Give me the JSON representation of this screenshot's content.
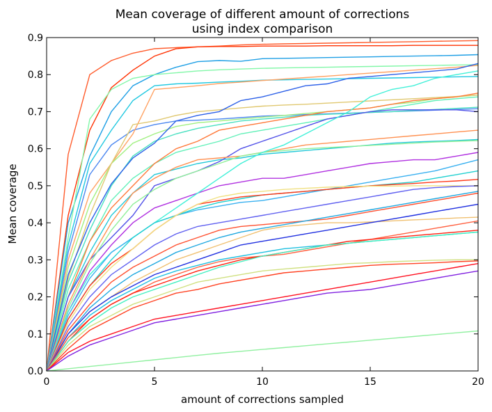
{
  "chart_data": {
    "type": "line",
    "title_lines": [
      "Mean coverage of different amount of corrections",
      "using index comparison"
    ],
    "xlabel": "amount of corrections sampled",
    "ylabel": "Mean coverage",
    "xlim": [
      0,
      20
    ],
    "ylim": [
      0,
      0.9
    ],
    "x_ticks": [
      0,
      5,
      10,
      15,
      20
    ],
    "y_ticks": [
      0.0,
      0.1,
      0.2,
      0.3,
      0.4,
      0.5,
      0.6,
      0.7,
      0.8,
      0.9
    ],
    "x_tick_labels": [
      "0",
      "5",
      "10",
      "15",
      "20"
    ],
    "y_tick_labels": [
      "0.0",
      "0.1",
      "0.2",
      "0.3",
      "0.4",
      "0.5",
      "0.6",
      "0.7",
      "0.8",
      "0.9"
    ],
    "grid": false,
    "legend": "none",
    "x": [
      0,
      1,
      2,
      3,
      4,
      5,
      6,
      7,
      8,
      9,
      10,
      11,
      12,
      13,
      14,
      15,
      16,
      17,
      18,
      19,
      20
    ],
    "series": [
      {
        "color": "#ff5a2a",
        "values": [
          0,
          0.585,
          0.8,
          0.838,
          0.858,
          0.87,
          0.873,
          0.875,
          0.877,
          0.88,
          0.882,
          0.883,
          0.884,
          0.885,
          0.886,
          0.887,
          0.888,
          0.889,
          0.89,
          0.891,
          0.892
        ]
      },
      {
        "color": "#ff3000",
        "values": [
          0,
          0.42,
          0.65,
          0.765,
          0.812,
          0.85,
          0.87,
          0.875,
          0.876,
          0.876,
          0.877,
          0.877,
          0.877,
          0.878,
          0.878,
          0.878,
          0.878,
          0.879,
          0.879,
          0.879,
          0.879
        ]
      },
      {
        "color": "#1e9fe5",
        "values": [
          0,
          0.4,
          0.58,
          0.7,
          0.77,
          0.8,
          0.82,
          0.835,
          0.838,
          0.836,
          0.843,
          0.844,
          0.845,
          0.846,
          0.847,
          0.848,
          0.849,
          0.85,
          0.851,
          0.852,
          0.854
        ]
      },
      {
        "color": "#82f7a8",
        "values": [
          0,
          0.36,
          0.68,
          0.76,
          0.79,
          0.8,
          0.805,
          0.81,
          0.813,
          0.815,
          0.817,
          0.818,
          0.819,
          0.82,
          0.821,
          0.822,
          0.823,
          0.824,
          0.825,
          0.826,
          0.827
        ]
      },
      {
        "color": "#1ec8e0",
        "values": [
          0,
          0.34,
          0.56,
          0.65,
          0.73,
          0.77,
          0.775,
          0.777,
          0.78,
          0.782,
          0.785,
          0.786,
          0.787,
          0.788,
          0.789,
          0.79,
          0.791,
          0.792,
          0.793,
          0.794,
          0.795
        ]
      },
      {
        "color": "#4a86f0",
        "values": [
          0,
          0.32,
          0.53,
          0.61,
          0.65,
          0.665,
          0.675,
          0.677,
          0.68,
          0.684,
          0.688,
          0.69,
          0.692,
          0.694,
          0.696,
          0.698,
          0.7,
          0.702,
          0.704,
          0.706,
          0.708
        ]
      },
      {
        "color": "#ffa060",
        "values": [
          0,
          0.3,
          0.48,
          0.56,
          0.64,
          0.76,
          0.765,
          0.77,
          0.776,
          0.78,
          0.784,
          0.788,
          0.792,
          0.796,
          0.8,
          0.804,
          0.808,
          0.812,
          0.816,
          0.82,
          0.825
        ]
      },
      {
        "color": "#a0f080",
        "values": [
          0,
          0.28,
          0.45,
          0.56,
          0.615,
          0.64,
          0.66,
          0.67,
          0.675,
          0.68,
          0.685,
          0.69,
          0.695,
          0.7,
          0.705,
          0.71,
          0.72,
          0.725,
          0.735,
          0.74,
          0.745
        ]
      },
      {
        "color": "#e0c870",
        "values": [
          0,
          0.25,
          0.42,
          0.56,
          0.665,
          0.675,
          0.69,
          0.7,
          0.705,
          0.71,
          0.715,
          0.718,
          0.72,
          0.723,
          0.726,
          0.729,
          0.732,
          0.735,
          0.738,
          0.741,
          0.745
        ]
      },
      {
        "color": "#48e0c0",
        "values": [
          0,
          0.24,
          0.38,
          0.5,
          0.58,
          0.62,
          0.64,
          0.655,
          0.665,
          0.675,
          0.68,
          0.685,
          0.69,
          0.693,
          0.695,
          0.698,
          0.7,
          0.703,
          0.706,
          0.709,
          0.712
        ]
      },
      {
        "color": "#2c60e8",
        "values": [
          0,
          0.26,
          0.4,
          0.505,
          0.575,
          0.615,
          0.675,
          0.69,
          0.7,
          0.73,
          0.74,
          0.755,
          0.77,
          0.775,
          0.79,
          0.795,
          0.8,
          0.805,
          0.81,
          0.815,
          0.83
        ]
      },
      {
        "color": "#60f0b8",
        "values": [
          0,
          0.22,
          0.35,
          0.46,
          0.52,
          0.56,
          0.59,
          0.605,
          0.62,
          0.64,
          0.65,
          0.66,
          0.67,
          0.68,
          0.69,
          0.7,
          0.71,
          0.72,
          0.73,
          0.735,
          0.74
        ]
      },
      {
        "color": "#ff7838",
        "values": [
          0,
          0.2,
          0.35,
          0.44,
          0.5,
          0.56,
          0.6,
          0.62,
          0.65,
          0.66,
          0.67,
          0.68,
          0.69,
          0.7,
          0.705,
          0.71,
          0.72,
          0.73,
          0.735,
          0.74,
          0.75
        ]
      },
      {
        "color": "#20c8d8",
        "values": [
          0,
          0.2,
          0.32,
          0.42,
          0.48,
          0.53,
          0.545,
          0.56,
          0.57,
          0.575,
          0.585,
          0.59,
          0.595,
          0.6,
          0.605,
          0.61,
          0.615,
          0.618,
          0.62,
          0.622,
          0.625
        ]
      },
      {
        "color": "#5050e8",
        "values": [
          0,
          0.2,
          0.3,
          0.36,
          0.42,
          0.5,
          0.52,
          0.54,
          0.565,
          0.6,
          0.62,
          0.64,
          0.66,
          0.68,
          0.69,
          0.7,
          0.705,
          0.705,
          0.705,
          0.705,
          0.7
        ]
      },
      {
        "color": "#ff9050",
        "values": [
          0,
          0.18,
          0.3,
          0.4,
          0.48,
          0.52,
          0.55,
          0.57,
          0.575,
          0.58,
          0.59,
          0.6,
          0.61,
          0.615,
          0.62,
          0.625,
          0.63,
          0.635,
          0.64,
          0.645,
          0.65
        ]
      },
      {
        "color": "#90f098",
        "values": [
          0,
          0.17,
          0.29,
          0.38,
          0.45,
          0.49,
          0.52,
          0.54,
          0.56,
          0.58,
          0.59,
          0.595,
          0.6,
          0.603,
          0.606,
          0.609,
          0.612,
          0.615,
          0.618,
          0.62,
          0.622
        ]
      },
      {
        "color": "#b030e0",
        "values": [
          0,
          0.16,
          0.27,
          0.34,
          0.4,
          0.44,
          0.46,
          0.48,
          0.5,
          0.51,
          0.52,
          0.52,
          0.53,
          0.54,
          0.55,
          0.56,
          0.565,
          0.57,
          0.57,
          0.58,
          0.59
        ]
      },
      {
        "color": "#40f0d8",
        "values": [
          0,
          0.16,
          0.26,
          0.32,
          0.36,
          0.4,
          0.44,
          0.48,
          0.52,
          0.56,
          0.59,
          0.61,
          0.64,
          0.67,
          0.7,
          0.74,
          0.76,
          0.77,
          0.79,
          0.8,
          0.81
        ]
      },
      {
        "color": "#38b0f0",
        "values": [
          0,
          0.15,
          0.25,
          0.32,
          0.36,
          0.4,
          0.42,
          0.435,
          0.445,
          0.455,
          0.46,
          0.47,
          0.48,
          0.49,
          0.5,
          0.51,
          0.52,
          0.53,
          0.54,
          0.555,
          0.57
        ]
      },
      {
        "color": "#20d0d0",
        "values": [
          0,
          0.14,
          0.23,
          0.3,
          0.36,
          0.4,
          0.42,
          0.44,
          0.455,
          0.465,
          0.475,
          0.48,
          0.485,
          0.49,
          0.495,
          0.5,
          0.505,
          0.51,
          0.52,
          0.53,
          0.54
        ]
      },
      {
        "color": "#ff3818",
        "values": [
          0,
          0.14,
          0.23,
          0.29,
          0.33,
          0.38,
          0.42,
          0.45,
          0.46,
          0.47,
          0.475,
          0.48,
          0.485,
          0.49,
          0.495,
          0.5,
          0.503,
          0.506,
          0.51,
          0.513,
          0.517
        ]
      },
      {
        "color": "#f0e080",
        "values": [
          0,
          0.13,
          0.22,
          0.28,
          0.33,
          0.38,
          0.42,
          0.45,
          0.47,
          0.48,
          0.485,
          0.49,
          0.493,
          0.496,
          0.498,
          0.499,
          0.499,
          0.5,
          0.5,
          0.5,
          0.5
        ]
      },
      {
        "color": "#6060f0",
        "values": [
          0,
          0.12,
          0.2,
          0.26,
          0.3,
          0.34,
          0.37,
          0.39,
          0.4,
          0.41,
          0.42,
          0.43,
          0.44,
          0.45,
          0.46,
          0.47,
          0.48,
          0.49,
          0.495,
          0.498,
          0.5
        ]
      },
      {
        "color": "#ff5030",
        "values": [
          0,
          0.11,
          0.18,
          0.24,
          0.28,
          0.31,
          0.34,
          0.36,
          0.38,
          0.39,
          0.395,
          0.4,
          0.405,
          0.41,
          0.42,
          0.43,
          0.44,
          0.45,
          0.46,
          0.47,
          0.48
        ]
      },
      {
        "color": "#1ea8e0",
        "values": [
          0,
          0.1,
          0.17,
          0.22,
          0.26,
          0.29,
          0.32,
          0.34,
          0.36,
          0.375,
          0.385,
          0.395,
          0.405,
          0.415,
          0.425,
          0.435,
          0.445,
          0.455,
          0.465,
          0.475,
          0.485
        ]
      },
      {
        "color": "#f0c070",
        "values": [
          0,
          0.1,
          0.16,
          0.2,
          0.24,
          0.27,
          0.3,
          0.32,
          0.34,
          0.36,
          0.38,
          0.39,
          0.395,
          0.4,
          0.4,
          0.402,
          0.405,
          0.408,
          0.41,
          0.413,
          0.415
        ]
      },
      {
        "color": "#2030e0",
        "values": [
          0,
          0.1,
          0.16,
          0.2,
          0.23,
          0.26,
          0.28,
          0.3,
          0.32,
          0.34,
          0.35,
          0.36,
          0.37,
          0.38,
          0.39,
          0.4,
          0.41,
          0.42,
          0.43,
          0.44,
          0.45
        ]
      },
      {
        "color": "#20c0e0",
        "values": [
          0,
          0.09,
          0.15,
          0.19,
          0.22,
          0.25,
          0.27,
          0.285,
          0.3,
          0.31,
          0.32,
          0.33,
          0.335,
          0.34,
          0.345,
          0.35,
          0.355,
          0.36,
          0.365,
          0.37,
          0.375
        ]
      },
      {
        "color": "#ff6040",
        "values": [
          0,
          0.09,
          0.14,
          0.18,
          0.21,
          0.24,
          0.26,
          0.28,
          0.295,
          0.305,
          0.31,
          0.315,
          0.325,
          0.335,
          0.345,
          0.355,
          0.365,
          0.375,
          0.385,
          0.395,
          0.405
        ]
      },
      {
        "color": "#ff2010",
        "values": [
          0,
          0.08,
          0.14,
          0.18,
          0.21,
          0.23,
          0.25,
          0.27,
          0.285,
          0.3,
          0.31,
          0.32,
          0.33,
          0.34,
          0.35,
          0.355,
          0.36,
          0.365,
          0.37,
          0.375,
          0.38
        ]
      },
      {
        "color": "#40f0c0",
        "values": [
          0,
          0.08,
          0.13,
          0.17,
          0.2,
          0.22,
          0.24,
          0.26,
          0.28,
          0.295,
          0.31,
          0.32,
          0.33,
          0.34,
          0.345,
          0.35,
          0.355,
          0.36,
          0.365,
          0.37,
          0.375
        ]
      },
      {
        "color": "#d0e080",
        "values": [
          0,
          0.07,
          0.12,
          0.15,
          0.18,
          0.2,
          0.22,
          0.24,
          0.25,
          0.26,
          0.27,
          0.275,
          0.28,
          0.285,
          0.29,
          0.292,
          0.295,
          0.297,
          0.299,
          0.3,
          0.3
        ]
      },
      {
        "color": "#ff4020",
        "values": [
          0,
          0.06,
          0.11,
          0.14,
          0.17,
          0.19,
          0.21,
          0.22,
          0.235,
          0.245,
          0.255,
          0.265,
          0.27,
          0.275,
          0.28,
          0.285,
          0.288,
          0.29,
          0.292,
          0.295,
          0.297
        ]
      },
      {
        "color": "#ff1020",
        "values": [
          0,
          0.05,
          0.08,
          0.1,
          0.12,
          0.14,
          0.15,
          0.16,
          0.17,
          0.18,
          0.19,
          0.2,
          0.21,
          0.22,
          0.23,
          0.24,
          0.25,
          0.26,
          0.27,
          0.28,
          0.29
        ]
      },
      {
        "color": "#8020e0",
        "values": [
          0,
          0.04,
          0.07,
          0.09,
          0.11,
          0.13,
          0.14,
          0.15,
          0.16,
          0.17,
          0.18,
          0.19,
          0.2,
          0.21,
          0.215,
          0.22,
          0.23,
          0.24,
          0.25,
          0.26,
          0.27
        ]
      },
      {
        "color": "#90f0a0",
        "values": [
          0,
          0.006,
          0.012,
          0.018,
          0.024,
          0.03,
          0.036,
          0.042,
          0.048,
          0.053,
          0.058,
          0.063,
          0.068,
          0.073,
          0.078,
          0.083,
          0.088,
          0.093,
          0.098,
          0.103,
          0.108
        ]
      }
    ]
  }
}
